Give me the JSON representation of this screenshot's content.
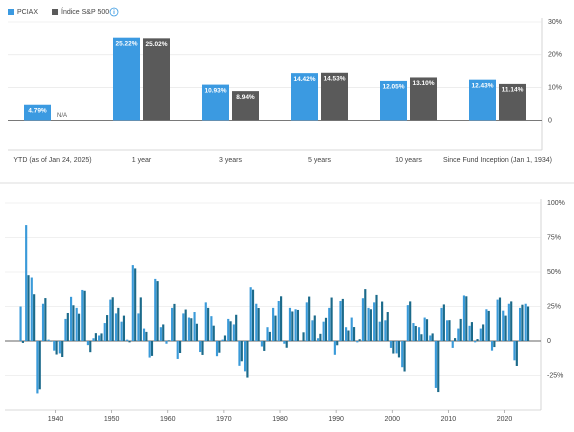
{
  "chart_data": [
    {
      "type": "bar",
      "categories": [
        "YTD (as of Jan 24, 2025)",
        "1 year",
        "3 years",
        "5 years",
        "10 years",
        "Since Fund Inception (Jan 1, 1934)"
      ],
      "series": [
        {
          "name": "PCIAX",
          "color": "#3b9ae1",
          "values": [
            4.79,
            25.22,
            10.93,
            14.42,
            12.05,
            12.43
          ],
          "value_labels": [
            "4.79%",
            "25.22%",
            "10.93%",
            "14.42%",
            "12.05%",
            "12.43%"
          ]
        },
        {
          "name": "Índice S&P 500",
          "color": "#5a5a5a",
          "values": [
            null,
            25.02,
            8.94,
            14.53,
            13.1,
            11.14
          ],
          "value_labels": [
            "N/A",
            "25.02%",
            "8.94%",
            "14.53%",
            "13.10%",
            "11.14%"
          ]
        }
      ],
      "ylim": [
        -9,
        30
      ],
      "yticks": [
        0,
        {
          "value": 10,
          "label": "10%"
        },
        {
          "value": 20,
          "label": "20%"
        },
        {
          "value": 30,
          "label": "30%"
        }
      ],
      "grid": true
    },
    {
      "type": "bar",
      "x": [
        1934,
        1935,
        1936,
        1937,
        1938,
        1939,
        1940,
        1941,
        1942,
        1943,
        1944,
        1945,
        1946,
        1947,
        1948,
        1949,
        1950,
        1951,
        1952,
        1953,
        1954,
        1955,
        1956,
        1957,
        1958,
        1959,
        1960,
        1961,
        1962,
        1963,
        1964,
        1965,
        1966,
        1967,
        1968,
        1969,
        1970,
        1971,
        1972,
        1973,
        1974,
        1975,
        1976,
        1977,
        1978,
        1979,
        1980,
        1981,
        1982,
        1983,
        1984,
        1985,
        1986,
        1987,
        1988,
        1989,
        1990,
        1991,
        1992,
        1993,
        1994,
        1995,
        1996,
        1997,
        1998,
        1999,
        2000,
        2001,
        2002,
        2003,
        2004,
        2005,
        2006,
        2007,
        2008,
        2009,
        2010,
        2011,
        2012,
        2013,
        2014,
        2015,
        2016,
        2017,
        2018,
        2019,
        2020,
        2021,
        2022,
        2023,
        2024
      ],
      "series": [
        {
          "color": "#3a9ad9",
          "values": [
            25,
            84,
            46,
            -38,
            27,
            1,
            -7,
            -9,
            16,
            32,
            24,
            37,
            -3,
            2,
            4,
            13,
            30,
            20,
            14,
            1,
            55,
            20,
            9,
            -12,
            45,
            10,
            -2,
            24,
            -13,
            20,
            17,
            21,
            -8,
            28,
            18,
            -11,
            1,
            16,
            12,
            -18,
            -22,
            39,
            27,
            -4,
            10,
            24,
            29,
            -2,
            24,
            23,
            0,
            28,
            15,
            2,
            14,
            24,
            -10,
            29,
            10,
            17,
            -1,
            31,
            24,
            28,
            14,
            15,
            -5,
            -9,
            -19,
            26,
            13,
            10,
            17,
            4,
            -34,
            24,
            15,
            -5,
            9,
            33,
            11,
            -1,
            9,
            23,
            -7,
            30,
            22,
            27,
            -14,
            24,
            27
          ]
        },
        {
          "color": "#1b6a8a",
          "values": [
            -1.4,
            47.7,
            33.9,
            -35.0,
            31.1,
            -0.4,
            -9.8,
            -11.6,
            20.3,
            25.9,
            19.8,
            36.4,
            -8.1,
            5.7,
            5.5,
            18.8,
            31.7,
            24.0,
            18.4,
            -1.0,
            52.6,
            31.6,
            6.6,
            -10.8,
            43.4,
            12.0,
            0.5,
            26.9,
            -8.7,
            22.8,
            16.5,
            12.5,
            -10.1,
            24.0,
            11.1,
            -8.5,
            4.0,
            14.3,
            19.0,
            -14.7,
            -26.5,
            37.2,
            23.9,
            -7.2,
            6.6,
            18.4,
            32.4,
            -4.9,
            21.4,
            22.5,
            6.3,
            32.2,
            18.5,
            5.2,
            16.8,
            31.5,
            -3.1,
            30.5,
            7.6,
            10.1,
            1.3,
            37.6,
            23.0,
            33.4,
            28.6,
            21.0,
            -9.1,
            -11.9,
            -22.1,
            28.7,
            10.9,
            4.9,
            15.8,
            5.5,
            -37.0,
            26.5,
            15.1,
            2.1,
            16.0,
            32.4,
            13.7,
            1.4,
            12.0,
            21.8,
            -4.4,
            31.5,
            18.4,
            28.7,
            -18.1,
            26.3,
            25.0
          ]
        }
      ],
      "xlim": [
        1931,
        2026.5
      ],
      "xticks": [
        1940,
        1950,
        1960,
        1970,
        1980,
        1990,
        2000,
        2010,
        2020
      ],
      "ylim": [
        -50,
        100
      ],
      "yticks": [
        {
          "value": -25,
          "label": "-25%"
        },
        0,
        {
          "value": 25,
          "label": "25%"
        },
        {
          "value": 50,
          "label": "50%"
        },
        {
          "value": 75,
          "label": "75%"
        },
        {
          "value": 100,
          "label": "100%"
        }
      ],
      "grid": true
    }
  ]
}
